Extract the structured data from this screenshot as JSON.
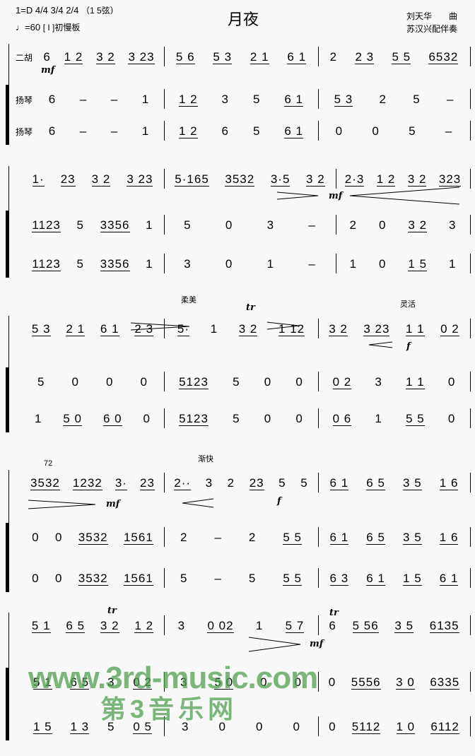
{
  "header": {
    "title": "月夜",
    "key": "1=D",
    "time_signatures": [
      "4/4",
      "3/4",
      "2/4"
    ],
    "tuning": "（1  5弦）",
    "tempo": "♩=60",
    "section": "[ I ]初慢板",
    "composer": "刘天华　　曲",
    "arranger": "苏汉兴配伴奏"
  },
  "instruments": {
    "erhu": "二胡",
    "yangqin": "扬琴"
  },
  "systems": [
    {
      "staves": [
        {
          "label": "二胡",
          "measures": [
            [
              "6",
              "1 2",
              "3 2",
              "3 23"
            ],
            [
              "5 6",
              "5 3",
              "2 1",
              "6 1"
            ],
            [
              "2",
              "2 3",
              "5 5",
              "6532"
            ]
          ]
        },
        {
          "label": "扬琴",
          "measures": [
            [
              "6",
              "–",
              "–",
              "1"
            ],
            [
              "1 2",
              "3",
              "5",
              "6 1"
            ],
            [
              "5 3",
              "2",
              "5",
              "–"
            ]
          ]
        },
        {
          "label": "扬琴",
          "measures": [
            [
              "6",
              "–",
              "–",
              "1"
            ],
            [
              "1 2",
              "6",
              "5",
              "6 1"
            ],
            [
              "0",
              "0",
              "5",
              "–"
            ]
          ]
        }
      ]
    },
    {
      "staves": [
        {
          "measures": [
            [
              "1·",
              "23",
              "3 2",
              "3 23"
            ],
            [
              "5·165",
              "3532",
              "3·5",
              "3 2"
            ],
            [
              "2·3",
              "1 2",
              "3 2",
              "323"
            ]
          ]
        },
        {
          "measures": [
            [
              "1123",
              "5",
              "3356",
              "1"
            ],
            [
              "5",
              "0",
              "3",
              "–"
            ],
            [
              "2",
              "0",
              "3 2",
              "3"
            ]
          ]
        },
        {
          "measures": [
            [
              "1123",
              "5",
              "3356",
              "1"
            ],
            [
              "3",
              "0",
              "1",
              "–"
            ],
            [
              "1",
              "0",
              "1 5",
              "1"
            ]
          ]
        }
      ]
    },
    {
      "staves": [
        {
          "measures": [
            [
              "5 3",
              "2 1",
              "6 1",
              "2 3"
            ],
            [
              "5·",
              "1",
              "3 2",
              "1 12"
            ],
            [
              "3 2",
              "3 23",
              "1 1",
              "0 2"
            ]
          ]
        },
        {
          "measures": [
            [
              "5",
              "0",
              "0",
              "0"
            ],
            [
              "5123",
              "5",
              "0",
              "0"
            ],
            [
              "0 2",
              "3",
              "1 1",
              "0"
            ]
          ]
        },
        {
          "measures": [
            [
              "1",
              "5 0",
              "6 0",
              "0"
            ],
            [
              "5123",
              "5",
              "0",
              "0"
            ],
            [
              "0 6",
              "1",
              "5 5",
              "0"
            ]
          ]
        }
      ]
    },
    {
      "staves": [
        {
          "measures": [
            [
              "3532",
              "1232",
              "3·",
              "23"
            ],
            [
              "2··",
              "3",
              "2",
              "23",
              "5",
              "5"
            ],
            [
              "6 1",
              "6 5",
              "3 5",
              "1 6"
            ]
          ]
        },
        {
          "measures": [
            [
              "0",
              "0",
              "3532",
              "1561"
            ],
            [
              "2",
              "–",
              "2",
              "5 5"
            ],
            [
              "6 1",
              "6 5",
              "3 5",
              "1 6"
            ]
          ]
        },
        {
          "measures": [
            [
              "0",
              "0",
              "3532",
              "1561"
            ],
            [
              "5",
              "–",
              "5",
              "5 5"
            ],
            [
              "6 3",
              "6 1",
              "1 5",
              "6 1"
            ]
          ]
        }
      ]
    },
    {
      "staves": [
        {
          "measures": [
            [
              "5 1",
              "6 5",
              "3 2",
              "1 2"
            ],
            [
              "3",
              "0 02",
              "1",
              "5 7"
            ],
            [
              "6",
              "5 56",
              "3 5",
              "6135"
            ]
          ]
        },
        {
          "measures": [
            [
              "5 1",
              "6 5",
              "3",
              "0 2"
            ],
            [
              "3",
              "5 0",
              "0",
              "0"
            ],
            [
              "0",
              "5556",
              "3 0",
              "6335"
            ]
          ]
        },
        {
          "measures": [
            [
              "1 5",
              "1 3",
              "5",
              "0 5"
            ],
            [
              "3",
              "0",
              "0",
              "0"
            ],
            [
              "0",
              "5112",
              "1 0",
              "6112"
            ]
          ]
        }
      ]
    }
  ],
  "annotations": {
    "mf": "mf",
    "f": "f",
    "tr": "tr",
    "soft": "柔美",
    "lively": "灵活",
    "accel": "渐快",
    "number72": "72"
  },
  "watermark": {
    "url": "www.3rd-music.com",
    "name": "第3音乐网"
  }
}
